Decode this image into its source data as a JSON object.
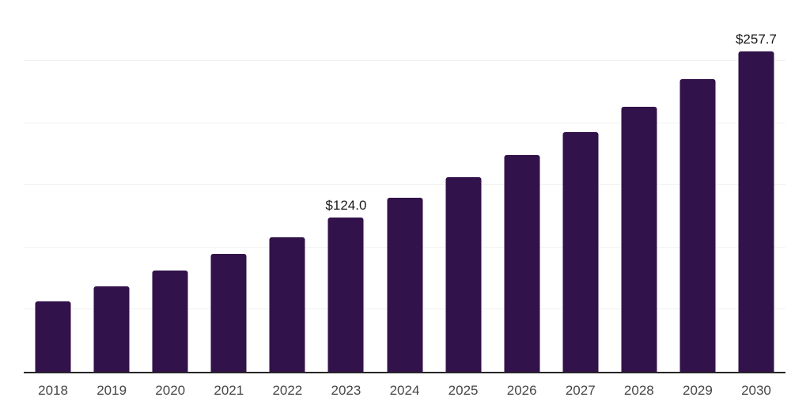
{
  "chart_data": {
    "type": "bar",
    "title": "",
    "xlabel": "",
    "ylabel": "",
    "categories": [
      "2018",
      "2019",
      "2020",
      "2021",
      "2022",
      "2023",
      "2024",
      "2025",
      "2026",
      "2027",
      "2028",
      "2029",
      "2030"
    ],
    "values": [
      56.7,
      68.6,
      81.1,
      94.4,
      108.4,
      124.0,
      140.0,
      156.7,
      174.6,
      192.9,
      213.2,
      235.3,
      257.7
    ],
    "data_labels": {
      "2023": "$124.0",
      "2030": "$257.7"
    },
    "ylim": [
      0,
      300
    ],
    "gridline_values": [
      50,
      100,
      150,
      200,
      250,
      300
    ],
    "grid": "horizontal-only",
    "legend_position": "none",
    "colors": {
      "bar": "#32124A",
      "gridline": "#f1f1f1",
      "axis_line": "#262626",
      "tick_label": "#474747",
      "data_label": "#1a1a1a",
      "background": "#ffffff"
    }
  }
}
